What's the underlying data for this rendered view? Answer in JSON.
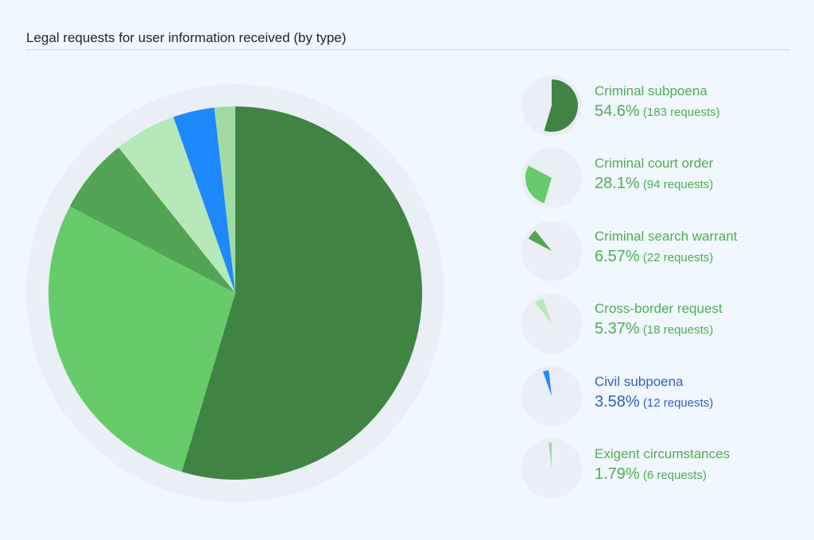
{
  "title": "Legal requests for user information received (by type)",
  "chart_data": {
    "type": "pie",
    "title": "Legal requests for user information received (by type)",
    "slices": [
      {
        "name": "Criminal subpoena",
        "percent": 54.6,
        "percent_label": "54.6%",
        "count_label": "(183 requests)",
        "value": 183,
        "color": "#3f8443",
        "text_color": "#4caf50"
      },
      {
        "name": "Criminal court order",
        "percent": 28.1,
        "percent_label": "28.1%",
        "count_label": "(94 requests)",
        "value": 94,
        "color": "#66cc6a",
        "text_color": "#4caf50"
      },
      {
        "name": "Criminal search warrant",
        "percent": 6.57,
        "percent_label": "6.57%",
        "count_label": "(22 requests)",
        "value": 22,
        "color": "#52a552",
        "text_color": "#4caf50"
      },
      {
        "name": "Cross-border request",
        "percent": 5.37,
        "percent_label": "5.37%",
        "count_label": "(18 requests)",
        "value": 18,
        "color": "#b6e8b8",
        "text_color": "#4caf50"
      },
      {
        "name": "Civil subpoena",
        "percent": 3.58,
        "percent_label": "3.58%",
        "count_label": "(12 requests)",
        "value": 12,
        "color": "#1e88ff",
        "text_color": "#2f5fc4"
      },
      {
        "name": "Exigent circumstances",
        "percent": 1.79,
        "percent_label": "1.79%",
        "count_label": "(6 requests)",
        "value": 6,
        "color": "#a0dca2",
        "text_color": "#4caf50"
      }
    ]
  }
}
